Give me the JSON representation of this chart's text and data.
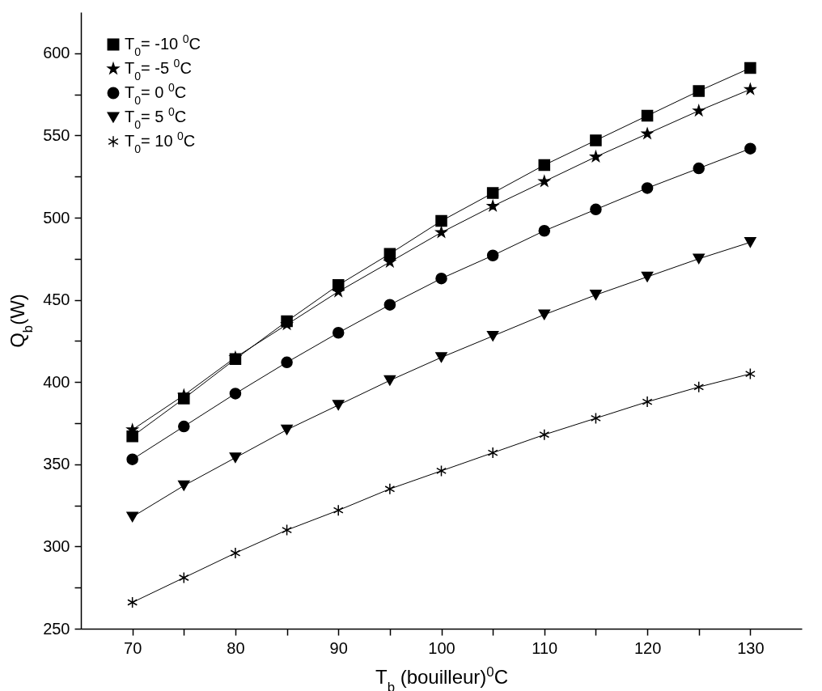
{
  "chart_data": {
    "type": "line",
    "xlabel": "T$_{b}$ (bouilleur)$^{0}$C",
    "ylabel": "Q$_{b}$(W)",
    "x": [
      70,
      75,
      80,
      85,
      90,
      95,
      100,
      105,
      110,
      115,
      120,
      125,
      130
    ],
    "series": [
      {
        "name": "T$_{0}$= -10 $^{0}$C",
        "color": "#000000",
        "marker": "square",
        "values": [
          367,
          390,
          414,
          437,
          459,
          478,
          498,
          515,
          532,
          547,
          562,
          577,
          591
        ]
      },
      {
        "name": "T$_{0}$= -5 $^{0}$C",
        "color": "#000000",
        "marker": "star",
        "values": [
          371,
          392,
          415,
          435,
          455,
          473,
          491,
          507,
          522,
          537,
          551,
          565,
          578
        ]
      },
      {
        "name": "T$_{0}$= 0 $^{0}$C",
        "color": "#000000",
        "marker": "circle",
        "values": [
          353,
          373,
          393,
          412,
          430,
          447,
          463,
          477,
          492,
          505,
          518,
          530,
          542
        ]
      },
      {
        "name": "T$_{0}$= 5 $^{0}$C",
        "color": "#000000",
        "marker": "triangle",
        "values": [
          318,
          337,
          354,
          371,
          386,
          401,
          415,
          428,
          441,
          453,
          464,
          475,
          485
        ]
      },
      {
        "name": "T$_{0}$= 10 $^{0}$C",
        "color": "#000000",
        "marker": "cross",
        "values": [
          266,
          281,
          296,
          310,
          322,
          335,
          346,
          357,
          368,
          378,
          388,
          397,
          405
        ]
      }
    ],
    "xlim": [
      65,
      135
    ],
    "xticks": [
      70,
      {
        "value": 75,
        "label": null
      },
      80,
      {
        "value": 85,
        "label": null
      },
      90,
      {
        "value": 95,
        "label": null
      },
      100,
      {
        "value": 105,
        "label": null
      },
      110,
      {
        "value": 115,
        "label": null
      },
      120,
      {
        "value": 125,
        "label": null
      },
      130
    ],
    "ylim": [
      250,
      625
    ],
    "yticks": [
      250,
      {
        "value": 275,
        "label": null
      },
      300,
      {
        "value": 325,
        "label": null
      },
      350,
      {
        "value": 375,
        "label": null
      },
      400,
      {
        "value": 425,
        "label": null
      },
      450,
      {
        "value": 475,
        "label": null
      },
      500,
      {
        "value": 525,
        "label": null
      },
      550,
      {
        "value": 575,
        "label": null
      },
      600
    ],
    "legend": "top left",
    "grid": false,
    "line_style": "solid"
  }
}
